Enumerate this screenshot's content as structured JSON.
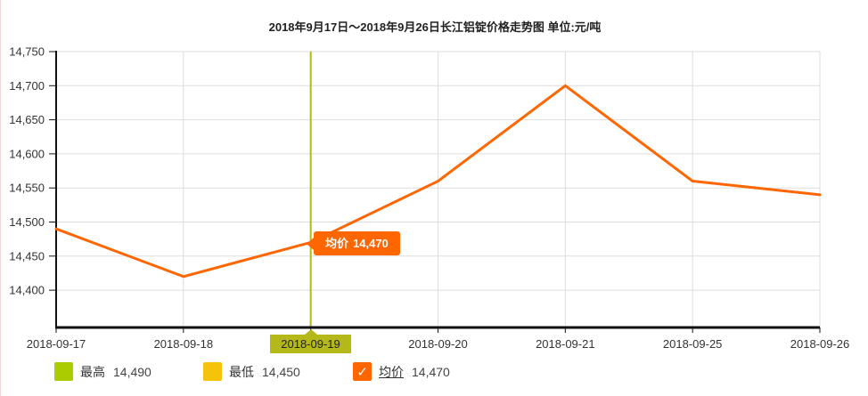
{
  "title": "2018年9月17日～2018年9月26日长江铝锭价格走势图 单位:元/吨",
  "chart_data": {
    "type": "line",
    "title": "2018年9月17日～2018年9月26日长江铝锭价格走势图",
    "unit": "元/吨",
    "x": [
      "2018-09-17",
      "2018-09-18",
      "2018-09-19",
      "2018-09-20",
      "2018-09-21",
      "2018-09-25",
      "2018-09-26"
    ],
    "series": [
      {
        "name": "均价",
        "color": "#ff6600",
        "values": [
          14490,
          14420,
          14470,
          14560,
          14700,
          14560,
          14540
        ]
      }
    ],
    "yticks": [
      14400,
      14450,
      14500,
      14550,
      14600,
      14650,
      14700,
      14750
    ],
    "ylim": [
      14350,
      14750
    ],
    "grid": true,
    "legend_position": "bottom",
    "highlight": {
      "date": "2018-09-19",
      "index": 2,
      "avg": 14470,
      "high": 14490,
      "low": 14450
    }
  },
  "tooltip": {
    "label": "均价",
    "value": "14,470"
  },
  "legend": {
    "items": [
      {
        "name": "最高",
        "value": "14,490",
        "color": "#aacc00",
        "checked": false
      },
      {
        "name": "最低",
        "value": "14,450",
        "color": "#f5c40a",
        "checked": false
      },
      {
        "name": "均价",
        "value": "14,470",
        "color": "#ff6600",
        "checked": true
      }
    ]
  },
  "colors": {
    "accent_orange": "#ff6600",
    "selected_olive": "#b4b819",
    "gridline": "#dddddd",
    "axis": "#111111",
    "label_text": "#333333"
  }
}
